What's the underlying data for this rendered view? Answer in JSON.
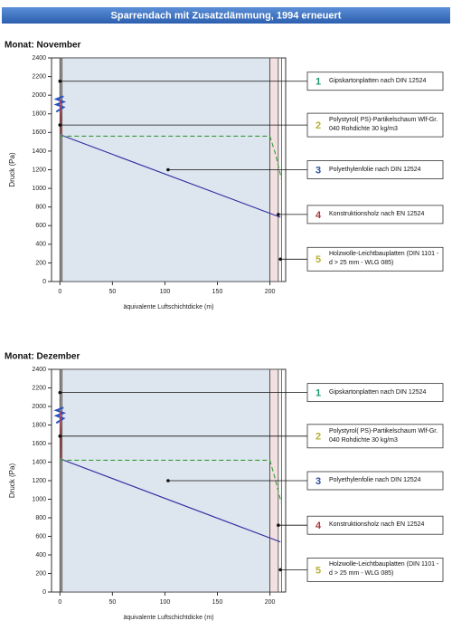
{
  "title": "Sparrendach mit Zusatzdämmung, 1994 erneuert",
  "chart_data": [
    {
      "type": "line",
      "title": "Monat: November",
      "xlabel": "äquivalente Luftschichtdicke (m)",
      "ylabel": "Druck (Pa)",
      "xlim": [
        -8,
        215
      ],
      "ylim": [
        0,
        2400
      ],
      "xticks": [
        0,
        50,
        100,
        150,
        200
      ],
      "yticks": [
        0,
        200,
        400,
        600,
        800,
        1000,
        1200,
        1400,
        1600,
        1800,
        2000,
        2200,
        2400
      ],
      "regions": [
        {
          "x0": 0,
          "x1": 0.5,
          "color": "#f4d6d6"
        },
        {
          "x0": 0.5,
          "x1": 2,
          "color": "#f7f2e4"
        },
        {
          "x0": 2,
          "x1": 200,
          "color": "#dde5ef"
        },
        {
          "x0": 200,
          "x1": 208,
          "color": "#f3e1e1"
        },
        {
          "x0": 208,
          "x1": 211,
          "color": "#ffffff"
        }
      ],
      "series": [
        {
          "color": "#d23a3a",
          "dash": false,
          "x": [
            0.5,
            1.5
          ],
          "values": [
            1950,
            1580
          ]
        },
        {
          "color": "#2c2ca0",
          "dash": false,
          "x": [
            1.5,
            210
          ],
          "values": [
            1570,
            690
          ]
        },
        {
          "color": "#3a9a3a",
          "dash": true,
          "x": [
            0,
            200,
            205,
            209,
            211
          ],
          "values": [
            1560,
            1560,
            1380,
            1200,
            1100
          ]
        }
      ],
      "annotations": [
        {
          "number": 1,
          "text": "Gipskartonplatten nach DIN 12524",
          "color": "#1f9a73",
          "x": 0,
          "y": 2150
        },
        {
          "number": 2,
          "text": "Polystyrol( PS)-Partikelschaum Wlf-Gr. 040 Rohdichte 30 kg/m3",
          "color": "#b8b030",
          "x": 0,
          "y": 1680
        },
        {
          "number": 3,
          "text": "Polyethylenfolie nach DIN 12524",
          "color": "#2a4fa0",
          "x": 103,
          "y": 1200
        },
        {
          "number": 4,
          "text": "Konstruktionsholz nach EN 12524",
          "color": "#a83a3a",
          "x": 208,
          "y": 720
        },
        {
          "number": 5,
          "text": "Holzwolle-Leichtbauplatten (DIN 1101 - d > 25 mm - WLG 085)",
          "color": "#b8b030",
          "x": 210,
          "y": 240
        }
      ]
    },
    {
      "type": "line",
      "title": "Monat: Dezember",
      "xlabel": "äquivalente Luftschichtdicke (m)",
      "ylabel": "Druck (Pa)",
      "xlim": [
        -8,
        215
      ],
      "ylim": [
        0,
        2400
      ],
      "xticks": [
        0,
        50,
        100,
        150,
        200
      ],
      "yticks": [
        0,
        200,
        400,
        600,
        800,
        1000,
        1200,
        1400,
        1600,
        1800,
        2000,
        2200,
        2400
      ],
      "regions": [
        {
          "x0": 0,
          "x1": 0.5,
          "color": "#f4d6d6"
        },
        {
          "x0": 0.5,
          "x1": 2,
          "color": "#f7f2e4"
        },
        {
          "x0": 2,
          "x1": 200,
          "color": "#dde5ef"
        },
        {
          "x0": 200,
          "x1": 208,
          "color": "#f3e1e1"
        },
        {
          "x0": 208,
          "x1": 211,
          "color": "#ffffff"
        }
      ],
      "series": [
        {
          "color": "#d23a3a",
          "dash": false,
          "x": [
            0.5,
            1.5
          ],
          "values": [
            1950,
            1440
          ]
        },
        {
          "color": "#2c2ca0",
          "dash": false,
          "x": [
            1.5,
            210
          ],
          "values": [
            1430,
            540
          ]
        },
        {
          "color": "#3a9a3a",
          "dash": true,
          "x": [
            0,
            200,
            205,
            209,
            211
          ],
          "values": [
            1420,
            1420,
            1220,
            1040,
            960
          ]
        }
      ],
      "annotations": [
        {
          "number": 1,
          "text": "Gipskartonplatten nach DIN 12524",
          "color": "#1f9a73",
          "x": 0,
          "y": 2150
        },
        {
          "number": 2,
          "text": "Polystyrol( PS)-Partikelschaum Wlf-Gr. 040 Rohdichte 30 kg/m3",
          "color": "#b8b030",
          "x": 0,
          "y": 1680
        },
        {
          "number": 3,
          "text": "Polyethylenfolie nach DIN 12524",
          "color": "#2a4fa0",
          "x": 103,
          "y": 1200
        },
        {
          "number": 4,
          "text": "Konstruktionsholz nach EN 12524",
          "color": "#a83a3a",
          "x": 208,
          "y": 720
        },
        {
          "number": 5,
          "text": "Holzwolle-Leichtbauplatten (DIN 1101 - d > 25 mm - WLG 085)",
          "color": "#b8b030",
          "x": 210,
          "y": 240
        }
      ]
    }
  ]
}
